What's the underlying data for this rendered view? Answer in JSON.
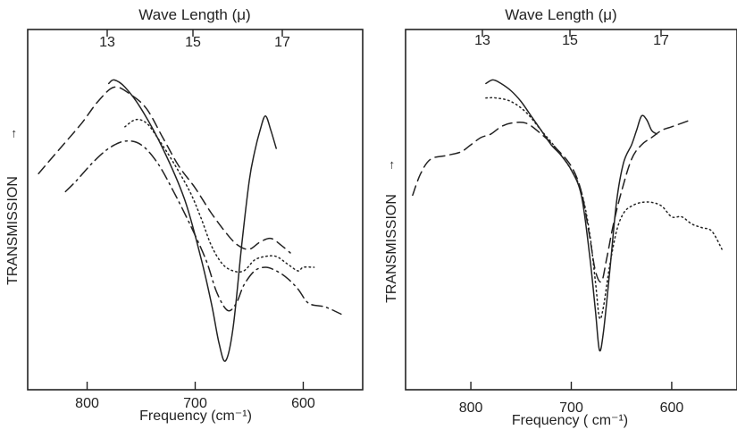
{
  "chart_data": [
    {
      "type": "line",
      "xlabel": "Frequency  (cm⁻¹)",
      "ylabel": "TRANSMISSION",
      "top_axis_label": "Wave Length  (μ)",
      "x_ticks": [
        "800",
        "700",
        "600"
      ],
      "x_tick_values": [
        800,
        700,
        600
      ],
      "top_ticks": [
        "13",
        "15",
        "17"
      ],
      "top_tick_values": [
        13,
        15,
        17
      ],
      "xlim": [
        855,
        545
      ],
      "ylim": [
        0,
        100
      ],
      "y_ticks_shown": false,
      "ylabel_arrow": "→",
      "grid": false,
      "series": [
        {
          "style": "solid",
          "x": [
            780,
            775,
            765,
            750,
            730,
            710,
            695,
            685,
            678,
            672,
            665,
            657,
            650,
            645,
            640,
            635,
            630,
            625
          ],
          "y": [
            85,
            86,
            84,
            78,
            67,
            53,
            37,
            24,
            13,
            8,
            17,
            40,
            58,
            66,
            72,
            76,
            72,
            67
          ]
        },
        {
          "style": "dashed",
          "x": [
            845,
            825,
            805,
            790,
            775,
            760,
            745,
            730,
            715,
            700,
            685,
            670,
            660,
            650,
            640,
            630,
            620,
            612
          ],
          "y": [
            60,
            67,
            74,
            80,
            84,
            82,
            78,
            70,
            62,
            56,
            49,
            43,
            40,
            39,
            41,
            42,
            40,
            38
          ]
        },
        {
          "style": "dotted",
          "x": [
            765,
            755,
            745,
            735,
            720,
            705,
            695,
            685,
            675,
            665,
            655,
            645,
            635,
            625,
            615,
            605,
            600,
            590
          ],
          "y": [
            73,
            75,
            74,
            70,
            63,
            55,
            48,
            40,
            35,
            33,
            33,
            36,
            37,
            37,
            35,
            33,
            34,
            34
          ]
        },
        {
          "style": "dash-dot",
          "x": [
            820,
            810,
            795,
            780,
            765,
            750,
            735,
            720,
            705,
            690,
            680,
            670,
            662,
            655,
            645,
            635,
            625,
            615,
            605,
            595,
            580,
            565
          ],
          "y": [
            55,
            58,
            63,
            67,
            69,
            68,
            63,
            55,
            46,
            36,
            27,
            22,
            24,
            29,
            33,
            34,
            33,
            31,
            28,
            24,
            23,
            21
          ]
        }
      ]
    },
    {
      "type": "line",
      "xlabel": "Frequency  ( cm⁻¹)",
      "ylabel": "TRANSMISSION",
      "top_axis_label": "Wave Length  (μ)",
      "x_ticks": [
        "800",
        "700",
        "600"
      ],
      "x_tick_values": [
        800,
        700,
        600
      ],
      "top_ticks": [
        "13",
        "15",
        "17"
      ],
      "top_tick_values": [
        13,
        15,
        17
      ],
      "xlim": [
        865,
        535
      ],
      "ylim": [
        0,
        100
      ],
      "y_ticks_shown": false,
      "ylabel_arrow": "→",
      "grid": false,
      "series": [
        {
          "style": "solid",
          "x": [
            785,
            778,
            770,
            760,
            750,
            740,
            730,
            720,
            710,
            700,
            690,
            682,
            676,
            672,
            668,
            662,
            655,
            648,
            640,
            635,
            630,
            625,
            620,
            615
          ],
          "y": [
            85,
            86,
            85,
            83,
            80,
            76,
            72,
            68,
            65,
            61,
            54,
            38,
            22,
            11,
            16,
            32,
            52,
            63,
            68,
            72,
            76,
            75,
            72,
            71
          ]
        },
        {
          "style": "dotted",
          "x": [
            785,
            775,
            760,
            745,
            730,
            715,
            700,
            690,
            682,
            676,
            672,
            668,
            662,
            655,
            648,
            640,
            630,
            620,
            610,
            600,
            590,
            580,
            570,
            560,
            550
          ],
          "y": [
            81,
            81,
            80,
            77,
            72,
            67,
            61,
            55,
            44,
            30,
            20,
            23,
            34,
            44,
            49,
            51,
            52,
            52,
            51,
            48,
            48,
            46,
            45,
            44,
            39
          ]
        },
        {
          "style": "dashed",
          "x": [
            858,
            850,
            840,
            825,
            810,
            800,
            790,
            780,
            770,
            760,
            745,
            730,
            715,
            700,
            690,
            682,
            676,
            670,
            665,
            658,
            650,
            640,
            630,
            620,
            610,
            600,
            590,
            580
          ],
          "y": [
            54,
            60,
            64,
            65,
            66,
            68,
            70,
            71,
            73,
            74,
            74,
            71,
            67,
            62,
            55,
            43,
            33,
            30,
            36,
            46,
            55,
            64,
            68,
            70,
            72,
            73,
            74,
            75
          ]
        }
      ]
    }
  ]
}
